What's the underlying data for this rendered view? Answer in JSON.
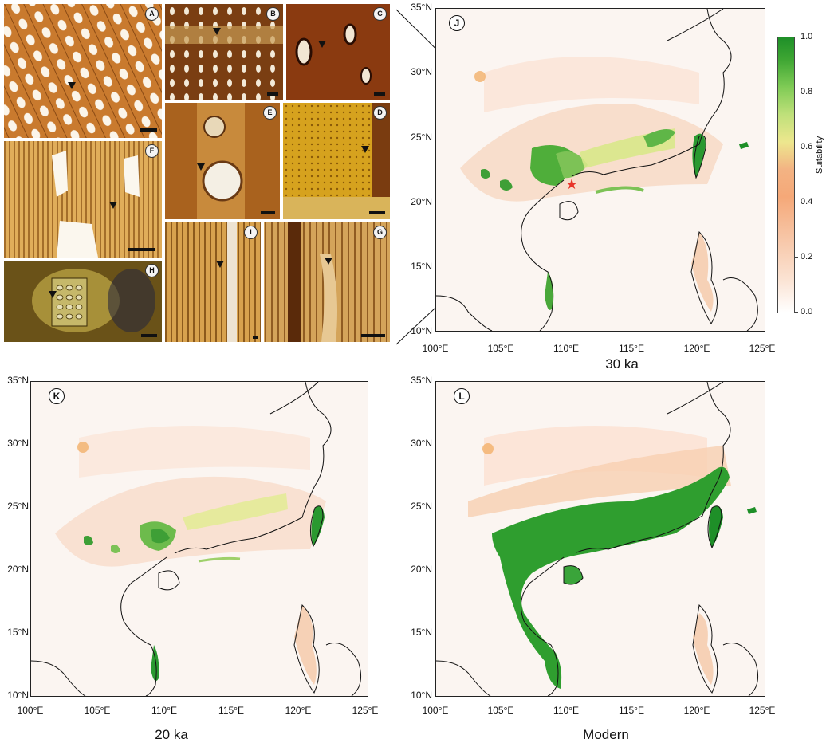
{
  "micrographs": [
    {
      "id": "A",
      "label": "A"
    },
    {
      "id": "B",
      "label": "B"
    },
    {
      "id": "C",
      "label": "C"
    },
    {
      "id": "E",
      "label": "E"
    },
    {
      "id": "D",
      "label": "D"
    },
    {
      "id": "F",
      "label": "F"
    },
    {
      "id": "H",
      "label": "H"
    },
    {
      "id": "I",
      "label": "I"
    },
    {
      "id": "G",
      "label": "G"
    }
  ],
  "maps": [
    {
      "id": "J",
      "letter": "J",
      "caption": "30 ka"
    },
    {
      "id": "K",
      "letter": "K",
      "caption": "20 ka"
    },
    {
      "id": "L",
      "letter": "L",
      "caption": "Modern"
    }
  ],
  "axes": {
    "lat_ticks": [
      "35°N",
      "30°N",
      "25°N",
      "20°N",
      "15°N",
      "10°N"
    ],
    "lon_ticks": [
      "100°E",
      "105°E",
      "110°E",
      "115°E",
      "120°E",
      "125°E"
    ],
    "lat_values": [
      35,
      30,
      25,
      20,
      15,
      10
    ],
    "lon_values": [
      100,
      105,
      110,
      115,
      120,
      125
    ]
  },
  "colorbar": {
    "title": "Suitability",
    "ticks": [
      "1.0",
      "0.8",
      "0.6",
      "0.4",
      "0.2",
      "0.0"
    ],
    "tick_values": [
      1.0,
      0.8,
      0.6,
      0.4,
      0.2,
      0.0
    ],
    "colors": {
      "low": "#ffffff",
      "mid": "#f5a878",
      "high": "#1e8f28"
    }
  },
  "fossil_site_marker": {
    "symbol": "★",
    "color": "#e8352a"
  }
}
